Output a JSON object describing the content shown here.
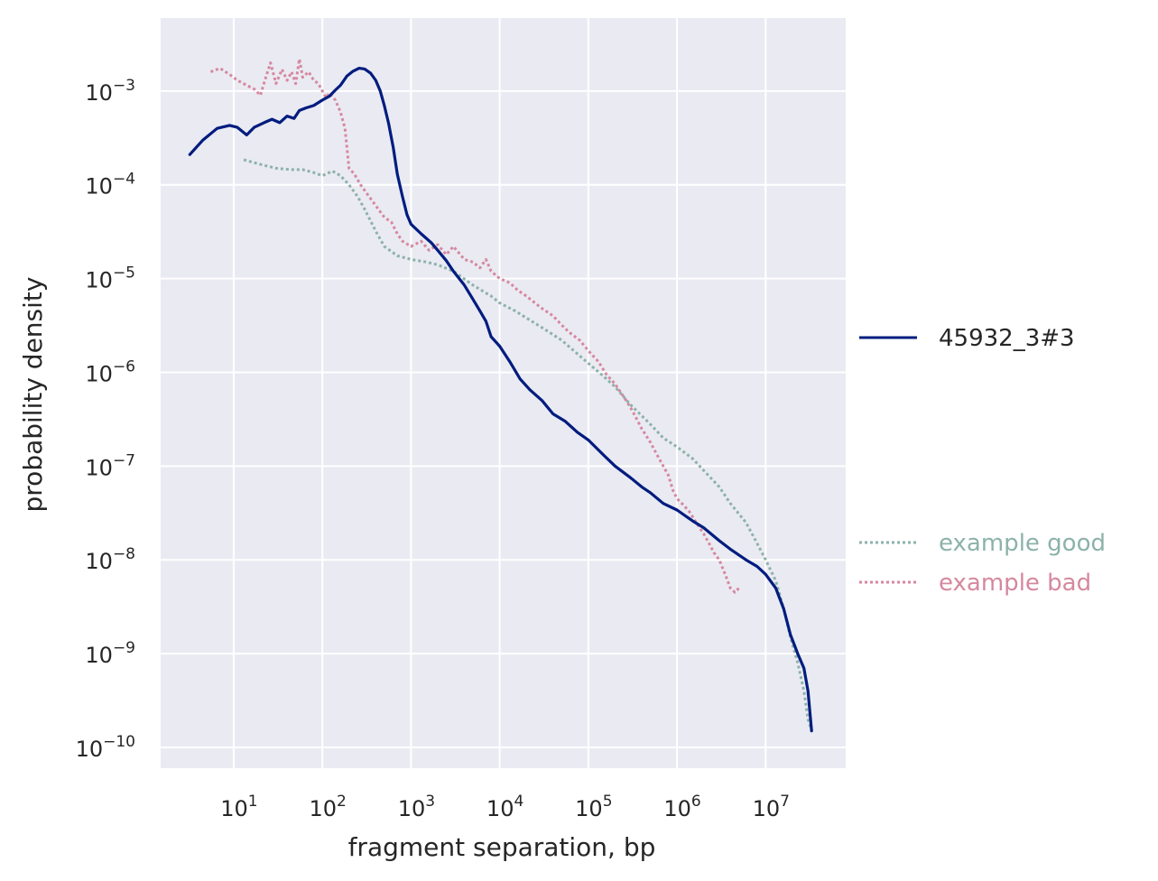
{
  "chart_data": {
    "type": "line",
    "xlabel": "fragment separation, bp",
    "ylabel": "probability density",
    "xscale": "log",
    "yscale": "log",
    "xlim": [
      1.5,
      80000000
    ],
    "ylim": [
      6e-11,
      0.006
    ],
    "grid": true,
    "x_ticks": [
      {
        "value": 10,
        "base": "10",
        "exp": "1"
      },
      {
        "value": 100,
        "base": "10",
        "exp": "2"
      },
      {
        "value": 1000,
        "base": "10",
        "exp": "3"
      },
      {
        "value": 10000,
        "base": "10",
        "exp": "4"
      },
      {
        "value": 100000,
        "base": "10",
        "exp": "5"
      },
      {
        "value": 1000000,
        "base": "10",
        "exp": "6"
      },
      {
        "value": 10000000,
        "base": "10",
        "exp": "7"
      }
    ],
    "y_ticks": [
      {
        "value": 0.001,
        "base": "10",
        "exp": "−3"
      },
      {
        "value": 0.0001,
        "base": "10",
        "exp": "−4"
      },
      {
        "value": 1e-05,
        "base": "10",
        "exp": "−5"
      },
      {
        "value": 1e-06,
        "base": "10",
        "exp": "−6"
      },
      {
        "value": 1e-07,
        "base": "10",
        "exp": "−7"
      },
      {
        "value": 1e-08,
        "base": "10",
        "exp": "−8"
      },
      {
        "value": 1e-09,
        "base": "10",
        "exp": "−9"
      },
      {
        "value": 1e-10,
        "base": "10",
        "exp": "−10"
      }
    ],
    "series": [
      {
        "name": "45932_3#3",
        "color": "#001c7f",
        "style": "solid",
        "legend_position": "right-middle",
        "points": [
          [
            3.2,
            0.00021
          ],
          [
            4.5,
            0.0003
          ],
          [
            6.5,
            0.0004
          ],
          [
            9,
            0.00043
          ],
          [
            11,
            0.00041
          ],
          [
            14,
            0.00034
          ],
          [
            17,
            0.00041
          ],
          [
            22,
            0.00046
          ],
          [
            27,
            0.0005
          ],
          [
            33,
            0.00046
          ],
          [
            40,
            0.00054
          ],
          [
            48,
            0.00051
          ],
          [
            55,
            0.00062
          ],
          [
            65,
            0.00066
          ],
          [
            80,
            0.0007
          ],
          [
            100,
            0.0008
          ],
          [
            120,
            0.00088
          ],
          [
            140,
            0.00102
          ],
          [
            160,
            0.00115
          ],
          [
            190,
            0.00145
          ],
          [
            220,
            0.00162
          ],
          [
            260,
            0.00175
          ],
          [
            300,
            0.00172
          ],
          [
            350,
            0.00155
          ],
          [
            400,
            0.0013
          ],
          [
            450,
            0.001
          ],
          [
            500,
            0.0007
          ],
          [
            560,
            0.00045
          ],
          [
            630,
            0.00025
          ],
          [
            700,
            0.00013
          ],
          [
            800,
            7.5e-05
          ],
          [
            900,
            4.8e-05
          ],
          [
            1000,
            3.8e-05
          ],
          [
            1300,
            3e-05
          ],
          [
            1700,
            2.4e-05
          ],
          [
            2000,
            2e-05
          ],
          [
            2500,
            1.55e-05
          ],
          [
            3000,
            1.2e-05
          ],
          [
            4000,
            8.5e-06
          ],
          [
            5000,
            6e-06
          ],
          [
            6000,
            4.5e-06
          ],
          [
            7000,
            3.5e-06
          ],
          [
            8000,
            2.4e-06
          ],
          [
            10000,
            1.9e-06
          ],
          [
            13000,
            1.3e-06
          ],
          [
            17000,
            8.5e-07
          ],
          [
            22000,
            6.5e-07
          ],
          [
            30000,
            5e-07
          ],
          [
            40000,
            3.6e-07
          ],
          [
            55000,
            3e-07
          ],
          [
            75000,
            2.3e-07
          ],
          [
            100000,
            1.9e-07
          ],
          [
            150000,
            1.3e-07
          ],
          [
            200000,
            1e-07
          ],
          [
            300000,
            7.5e-08
          ],
          [
            400000,
            6e-08
          ],
          [
            500000,
            5.2e-08
          ],
          [
            700000,
            4e-08
          ],
          [
            1000000,
            3.4e-08
          ],
          [
            1500000,
            2.6e-08
          ],
          [
            2000000,
            2.2e-08
          ],
          [
            3000000,
            1.6e-08
          ],
          [
            4000000,
            1.3e-08
          ],
          [
            6000000,
            1e-08
          ],
          [
            8000000,
            8.5e-09
          ],
          [
            10000000,
            7e-09
          ],
          [
            13000000,
            5e-09
          ],
          [
            16000000,
            3e-09
          ],
          [
            19000000,
            1.6e-09
          ],
          [
            23000000,
            1e-09
          ],
          [
            27000000,
            7e-10
          ],
          [
            30000000,
            4e-10
          ],
          [
            33000000,
            1.5e-10
          ]
        ]
      },
      {
        "name": "example good",
        "color": "#8cb2aa",
        "style": "dotted",
        "legend_position": "right-lower",
        "points": [
          [
            13,
            0.000185
          ],
          [
            20,
            0.000165
          ],
          [
            30,
            0.00015
          ],
          [
            45,
            0.000145
          ],
          [
            60,
            0.000145
          ],
          [
            80,
            0.000135
          ],
          [
            100,
            0.000125
          ],
          [
            130,
            0.00014
          ],
          [
            160,
            0.000125
          ],
          [
            200,
            0.0001
          ],
          [
            250,
            7.5e-05
          ],
          [
            300,
            5.5e-05
          ],
          [
            400,
            3.2e-05
          ],
          [
            500,
            2.2e-05
          ],
          [
            700,
            1.75e-05
          ],
          [
            1000,
            1.6e-05
          ],
          [
            1500,
            1.5e-05
          ],
          [
            2000,
            1.4e-05
          ],
          [
            3000,
            1.2e-05
          ],
          [
            5000,
            8.5e-06
          ],
          [
            8000,
            6.5e-06
          ],
          [
            10000,
            5.5e-06
          ],
          [
            15000,
            4.5e-06
          ],
          [
            20000,
            3.8e-06
          ],
          [
            30000,
            3e-06
          ],
          [
            50000,
            2.2e-06
          ],
          [
            80000,
            1.5e-06
          ],
          [
            100000,
            1.25e-06
          ],
          [
            150000,
            9e-07
          ],
          [
            200000,
            7e-07
          ],
          [
            300000,
            4.5e-07
          ],
          [
            500000,
            2.8e-07
          ],
          [
            700000,
            2e-07
          ],
          [
            1000000,
            1.6e-07
          ],
          [
            1500000,
            1.2e-07
          ],
          [
            2000000,
            9e-08
          ],
          [
            3000000,
            6e-08
          ],
          [
            4000000,
            4e-08
          ],
          [
            6000000,
            2.5e-08
          ],
          [
            8000000,
            1.5e-08
          ],
          [
            10000000,
            1e-08
          ],
          [
            13000000,
            6e-09
          ],
          [
            16000000,
            3e-09
          ],
          [
            19000000,
            1.5e-09
          ],
          [
            23000000,
            8e-10
          ],
          [
            27000000,
            4e-10
          ],
          [
            30000000,
            2e-10
          ],
          [
            33000000,
            1.5e-10
          ]
        ]
      },
      {
        "name": "example bad",
        "color": "#d5889f",
        "style": "dotted",
        "legend_position": "right-lower",
        "points": [
          [
            5.5,
            0.0016
          ],
          [
            7,
            0.00175
          ],
          [
            9,
            0.0015
          ],
          [
            11,
            0.0013
          ],
          [
            14,
            0.00115
          ],
          [
            17,
            0.00105
          ],
          [
            20,
            0.0009
          ],
          [
            23,
            0.0014
          ],
          [
            26,
            0.002
          ],
          [
            30,
            0.0012
          ],
          [
            35,
            0.0017
          ],
          [
            40,
            0.0013
          ],
          [
            45,
            0.0016
          ],
          [
            50,
            0.0012
          ],
          [
            55,
            0.0022
          ],
          [
            60,
            0.0014
          ],
          [
            70,
            0.0016
          ],
          [
            80,
            0.0013
          ],
          [
            90,
            0.0012
          ],
          [
            100,
            0.001
          ],
          [
            110,
            0.00085
          ],
          [
            120,
            0.00095
          ],
          [
            140,
            0.0008
          ],
          [
            160,
            0.0006
          ],
          [
            180,
            0.0004
          ],
          [
            200,
            0.00015
          ],
          [
            230,
            0.00013
          ],
          [
            270,
            0.0001
          ],
          [
            320,
            8e-05
          ],
          [
            400,
            6e-05
          ],
          [
            500,
            4.5e-05
          ],
          [
            600,
            4e-05
          ],
          [
            700,
            3e-05
          ],
          [
            800,
            2.5e-05
          ],
          [
            1000,
            2.2e-05
          ],
          [
            1300,
            2.5e-05
          ],
          [
            1600,
            2e-05
          ],
          [
            2000,
            2.3e-05
          ],
          [
            2500,
            1.8e-05
          ],
          [
            3000,
            2.2e-05
          ],
          [
            4000,
            1.6e-05
          ],
          [
            5000,
            1.5e-05
          ],
          [
            6000,
            1.3e-05
          ],
          [
            7000,
            1.6e-05
          ],
          [
            8000,
            1.2e-05
          ],
          [
            10000,
            1e-05
          ],
          [
            13000,
            9e-06
          ],
          [
            16000,
            7.5e-06
          ],
          [
            20000,
            6.5e-06
          ],
          [
            25000,
            5.5e-06
          ],
          [
            30000,
            4.8e-06
          ],
          [
            40000,
            4e-06
          ],
          [
            50000,
            3.2e-06
          ],
          [
            60000,
            2.7e-06
          ],
          [
            80000,
            2.2e-06
          ],
          [
            100000,
            1.7e-06
          ],
          [
            130000,
            1.3e-06
          ],
          [
            160000,
            9.5e-07
          ],
          [
            200000,
            7.5e-07
          ],
          [
            250000,
            5.5e-07
          ],
          [
            300000,
            4.2e-07
          ],
          [
            350000,
            3.2e-07
          ],
          [
            400000,
            2.5e-07
          ],
          [
            500000,
            1.8e-07
          ],
          [
            600000,
            1.3e-07
          ],
          [
            700000,
            1e-07
          ],
          [
            800000,
            8e-08
          ],
          [
            900000,
            5.5e-08
          ],
          [
            1000000,
            4.5e-08
          ],
          [
            1200000,
            3.8e-08
          ],
          [
            1400000,
            3.2e-08
          ],
          [
            1600000,
            2.6e-08
          ],
          [
            1800000,
            2.2e-08
          ],
          [
            2000000,
            1.9e-08
          ],
          [
            2300000,
            1.5e-08
          ],
          [
            2600000,
            1.2e-08
          ],
          [
            3000000,
            1e-08
          ],
          [
            3500000,
            7e-09
          ],
          [
            4000000,
            5e-09
          ],
          [
            4500000,
            4.5e-09
          ],
          [
            5000000,
            5e-09
          ]
        ]
      }
    ]
  }
}
